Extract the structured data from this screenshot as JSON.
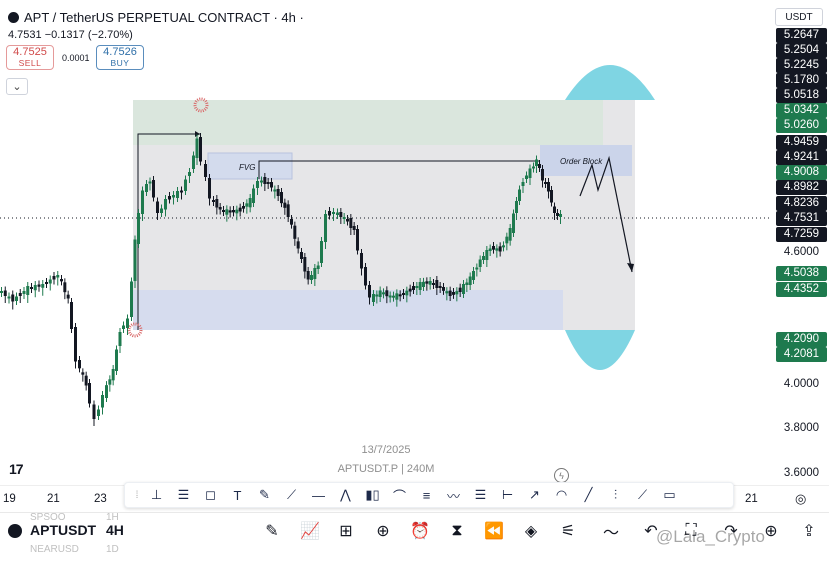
{
  "header": {
    "symbol": "APT / TetherUS PERPETUAL CONTRACT · 4h ·",
    "price_row": "4.7531  −0.1317 (−2.70%)",
    "sell_price": "4.7525",
    "sell_label": "SELL",
    "spread": "0.0001",
    "buy_price": "4.7526",
    "buy_label": "BUY",
    "collapse_icon": "chevron-down-icon"
  },
  "currency_select": "USDT",
  "price_axis": {
    "labels": [
      {
        "text": "5.2647",
        "style": "black"
      },
      {
        "text": "5.2504",
        "style": "black"
      },
      {
        "text": "5.2245",
        "style": "black"
      },
      {
        "text": "5.1780",
        "style": "black"
      },
      {
        "text": "5.0518",
        "style": "black"
      },
      {
        "text": "5.0342",
        "style": "green"
      },
      {
        "text": "5.0260",
        "style": "green"
      },
      {
        "text": "4.9459",
        "style": "black"
      },
      {
        "text": "4.9241",
        "style": "black"
      },
      {
        "text": "4.9008",
        "style": "green"
      },
      {
        "text": "4.8982",
        "style": "black"
      },
      {
        "text": "4.8236",
        "style": "black"
      },
      {
        "text": "4.7531",
        "style": "black"
      },
      {
        "text": "4.7259",
        "style": "black"
      },
      {
        "text": "4.6000",
        "style": "plain"
      },
      {
        "text": "4.5038",
        "style": "green"
      },
      {
        "text": "4.4352",
        "style": "green"
      },
      {
        "text": "4.2090",
        "style": "green"
      },
      {
        "text": "4.2081",
        "style": "green"
      },
      {
        "text": "4.0000",
        "style": "plain"
      },
      {
        "text": "3.8000",
        "style": "plain"
      },
      {
        "text": "3.6000",
        "style": "plain"
      }
    ]
  },
  "annotations": {
    "fvg": "FVG",
    "order_block": "Order Block"
  },
  "chart_watermark": {
    "date": "13/7/2025",
    "ticker": "APTUSDT.P | 240M"
  },
  "time_axis": [
    "19",
    "21",
    "23",
    "21"
  ],
  "toolbar_icons": [
    "cursor-icon",
    "horizontal-ray-icon",
    "rectangle-icon",
    "text-icon",
    "brush-icon",
    "trend-line-icon",
    "horizontal-line-icon",
    "pattern-icon",
    "candles-icon",
    "arc-icon",
    "fib-icon",
    "path-icon",
    "ruler-icon",
    "date-range-icon",
    "arrow-icon",
    "shape-icon",
    "line-icon",
    "ticks-icon",
    "polyline-icon",
    "note-icon"
  ],
  "bottom_bar": {
    "symbol": "APTUSDT",
    "timeframe": "4H",
    "ghost_prev": "SPSOO",
    "ghost_prev_tf": "1H",
    "ghost_next": "NEARUSD",
    "ghost_next_tf": "1D",
    "credit": "@Lala_Crypto"
  },
  "colors": {
    "up": "#1e7a4e",
    "down": "#131722",
    "fvg_box": "#d5dbeb",
    "order_box": "#c6cfe6",
    "zone_box": "#e4e4e6",
    "green_zone": "#cfe4d6",
    "cyan": "#7fd5e3"
  }
}
